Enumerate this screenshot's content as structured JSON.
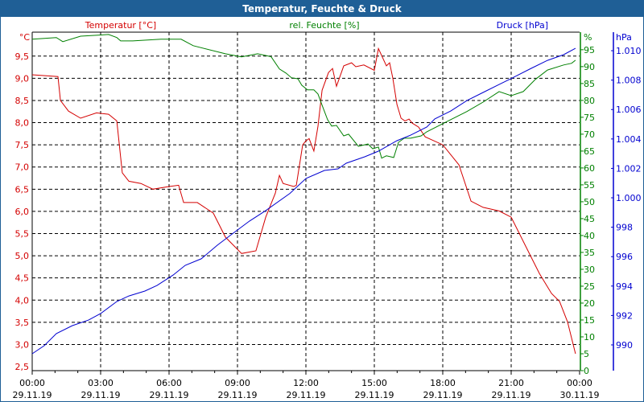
{
  "window": {
    "title": "Temperatur, Feuchte & Druck"
  },
  "chart_data": {
    "type": "line",
    "title": "Temperatur, Feuchte & Druck",
    "xlabel": "",
    "x_unit": "hours since 29.11.19 00:00",
    "xlim": [
      0,
      24
    ],
    "x_ticks": [
      {
        "time": "00:00",
        "date": "29.11.19",
        "h": 0
      },
      {
        "time": "03:00",
        "date": "29.11.19",
        "h": 3
      },
      {
        "time": "06:00",
        "date": "29.11.19",
        "h": 6
      },
      {
        "time": "09:00",
        "date": "29.11.19",
        "h": 9
      },
      {
        "time": "12:00",
        "date": "29.11.19",
        "h": 12
      },
      {
        "time": "15:00",
        "date": "29.11.19",
        "h": 15
      },
      {
        "time": "18:00",
        "date": "29.11.19",
        "h": 18
      },
      {
        "time": "21:00",
        "date": "29.11.19",
        "h": 21
      },
      {
        "time": "00:00",
        "date": "30.11.19",
        "h": 24
      }
    ],
    "grid": true,
    "axes": {
      "temperature": {
        "label": "Temperatur [°C]",
        "unit": "°C",
        "color": "#d40000",
        "ylim": [
          2.41,
          10.04
        ],
        "ticks": [
          {
            "v": 2.5,
            "label": "2,5"
          },
          {
            "v": 3.0,
            "label": "3,0"
          },
          {
            "v": 3.5,
            "label": "3,5"
          },
          {
            "v": 4.0,
            "label": "4,0"
          },
          {
            "v": 4.5,
            "label": "4,5"
          },
          {
            "v": 5.0,
            "label": "5,0"
          },
          {
            "v": 5.5,
            "label": "5,5"
          },
          {
            "v": 6.0,
            "label": "6,0"
          },
          {
            "v": 6.5,
            "label": "6,5"
          },
          {
            "v": 7.0,
            "label": "7,0"
          },
          {
            "v": 7.5,
            "label": "7,5"
          },
          {
            "v": 8.0,
            "label": "8,0"
          },
          {
            "v": 8.5,
            "label": "8,5"
          },
          {
            "v": 9.0,
            "label": "9,0"
          },
          {
            "v": 9.5,
            "label": "9,5"
          }
        ]
      },
      "humidity": {
        "label": "rel. Feuchte [%]",
        "unit": "%",
        "color": "#008000",
        "ylim": [
          0,
          100.2
        ],
        "ticks": [
          {
            "v": 0,
            "label": "0"
          },
          {
            "v": 5,
            "label": "5"
          },
          {
            "v": 10,
            "label": "10"
          },
          {
            "v": 15,
            "label": "15"
          },
          {
            "v": 20,
            "label": "20"
          },
          {
            "v": 25,
            "label": "25"
          },
          {
            "v": 30,
            "label": "30"
          },
          {
            "v": 35,
            "label": "35"
          },
          {
            "v": 40,
            "label": "40"
          },
          {
            "v": 45,
            "label": "45"
          },
          {
            "v": 50,
            "label": "50"
          },
          {
            "v": 55,
            "label": "55"
          },
          {
            "v": 60,
            "label": "60"
          },
          {
            "v": 65,
            "label": "65"
          },
          {
            "v": 70,
            "label": "70"
          },
          {
            "v": 75,
            "label": "75"
          },
          {
            "v": 80,
            "label": "80"
          },
          {
            "v": 85,
            "label": "85"
          },
          {
            "v": 90,
            "label": "90"
          },
          {
            "v": 95,
            "label": "95"
          }
        ]
      },
      "pressure": {
        "label": "Druck [hPa]",
        "unit": "hPa",
        "color": "#0000d0",
        "ylim": [
          988.25,
          1011.26
        ],
        "ticks": [
          {
            "v": 990,
            "label": "990"
          },
          {
            "v": 992,
            "label": "992"
          },
          {
            "v": 994,
            "label": "994"
          },
          {
            "v": 996,
            "label": "996"
          },
          {
            "v": 998,
            "label": "998"
          },
          {
            "v": 1000,
            "label": "1.000"
          },
          {
            "v": 1002,
            "label": "1.002"
          },
          {
            "v": 1004,
            "label": "1.004"
          },
          {
            "v": 1006,
            "label": "1.006"
          },
          {
            "v": 1008,
            "label": "1.008"
          },
          {
            "v": 1010,
            "label": "1.010"
          }
        ]
      }
    },
    "series": [
      {
        "name": "Temperatur [°C]",
        "axis": "temperature",
        "color": "#d40000",
        "x": [
          0,
          1.13,
          1.24,
          1.59,
          2.12,
          2.82,
          3.35,
          3.71,
          3.95,
          4.24,
          4.77,
          5.29,
          6.0,
          6.42,
          6.64,
          7.24,
          7.94,
          8.47,
          9.18,
          9.81,
          10.24,
          10.66,
          10.84,
          11.0,
          11.47,
          11.58,
          11.72,
          11.86,
          12.0,
          12.14,
          12.35,
          12.53,
          12.71,
          12.99,
          13.17,
          13.34,
          13.66,
          14.0,
          14.19,
          14.54,
          15.0,
          15.18,
          15.53,
          15.67,
          15.81,
          15.99,
          16.17,
          16.34,
          16.52,
          16.66,
          16.94,
          17.23,
          18.0,
          18.71,
          19.24,
          19.77,
          20.47,
          21.0,
          21.71,
          22.24,
          22.77,
          23.12,
          23.47,
          23.82
        ],
        "y": [
          9.08,
          9.04,
          8.5,
          8.26,
          8.1,
          8.22,
          8.19,
          8.04,
          6.87,
          6.68,
          6.63,
          6.5,
          6.56,
          6.59,
          6.2,
          6.2,
          5.96,
          5.42,
          5.05,
          5.11,
          5.87,
          6.41,
          6.81,
          6.63,
          6.56,
          6.59,
          7.05,
          7.5,
          7.59,
          7.64,
          7.36,
          7.92,
          8.73,
          9.13,
          9.22,
          8.82,
          9.28,
          9.35,
          9.26,
          9.3,
          9.18,
          9.67,
          9.28,
          9.35,
          9.0,
          8.41,
          8.1,
          8.04,
          8.08,
          7.99,
          7.9,
          7.68,
          7.5,
          7.05,
          6.23,
          6.09,
          6.01,
          5.87,
          5.14,
          4.6,
          4.15,
          3.97,
          3.51,
          2.79
        ]
      },
      {
        "name": "rel. Feuchte [%]",
        "axis": "humidity",
        "color": "#008000",
        "x": [
          0,
          1.06,
          1.34,
          2.12,
          3.35,
          3.71,
          3.88,
          4.41,
          5.65,
          6.53,
          7.06,
          8.47,
          9.18,
          9.88,
          10.24,
          10.48,
          10.84,
          11.12,
          11.37,
          11.65,
          11.82,
          12.07,
          12.35,
          12.53,
          12.71,
          12.95,
          13.13,
          13.34,
          13.66,
          13.87,
          14.3,
          14.72,
          14.93,
          15.18,
          15.32,
          15.53,
          15.85,
          16.06,
          16.31,
          16.59,
          17.05,
          17.3,
          18.35,
          19.06,
          19.77,
          20.47,
          21.0,
          21.53,
          22.06,
          22.59,
          23.3,
          23.65,
          23.82
        ],
        "y": [
          98.1,
          98.6,
          97.4,
          99.0,
          99.5,
          98.6,
          97.6,
          97.6,
          98.1,
          98.1,
          96.2,
          93.8,
          92.9,
          93.8,
          93.3,
          92.9,
          89.3,
          88.1,
          86.7,
          86.4,
          84.5,
          83.1,
          83.1,
          81.9,
          78.6,
          74.3,
          72.4,
          72.6,
          69.5,
          70.0,
          66.4,
          67.1,
          65.7,
          66.2,
          62.9,
          63.6,
          63.1,
          67.6,
          68.8,
          68.8,
          69.5,
          70.7,
          74.3,
          76.7,
          79.5,
          82.6,
          81.4,
          82.6,
          86.2,
          89.0,
          90.5,
          91.0,
          91.9
        ]
      },
      {
        "name": "Druck [hPa]",
        "axis": "pressure",
        "color": "#0000d0",
        "x": [
          0,
          0.53,
          1.06,
          1.76,
          2.47,
          3.0,
          3.71,
          4.24,
          4.94,
          5.47,
          6.18,
          6.71,
          7.41,
          8.12,
          8.82,
          9.53,
          10.24,
          11.3,
          12.0,
          12.81,
          13.41,
          13.77,
          14.58,
          15.18,
          15.99,
          16.59,
          17.3,
          17.65,
          18.35,
          19.06,
          19.77,
          20.47,
          21.18,
          21.88,
          22.59,
          23.3,
          23.82
        ],
        "y": [
          989.4,
          989.95,
          990.77,
          991.31,
          991.69,
          992.13,
          992.95,
          993.33,
          993.66,
          994.04,
          994.75,
          995.41,
          995.85,
          996.78,
          997.6,
          998.42,
          999.13,
          1000.3,
          1001.31,
          1001.86,
          1001.97,
          1002.35,
          1002.79,
          1003.17,
          1003.88,
          1004.26,
          1004.81,
          1005.36,
          1005.9,
          1006.61,
          1007.16,
          1007.7,
          1008.25,
          1008.8,
          1009.34,
          1009.73,
          1010.16
        ]
      }
    ]
  }
}
